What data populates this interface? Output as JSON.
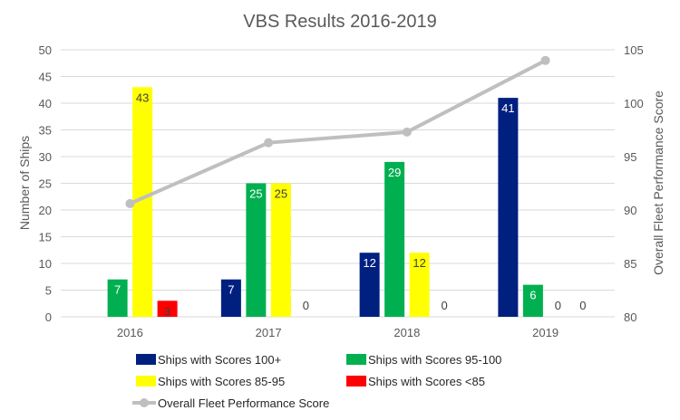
{
  "chart_data": {
    "type": "bar",
    "title": "VBS Results 2016-2019",
    "categories": [
      "2016",
      "2017",
      "2018",
      "2019"
    ],
    "ylabel": "Number of Ships",
    "y2label": "Overall Fleet Performance Score",
    "ylim": [
      0,
      50
    ],
    "y2lim": [
      80,
      105
    ],
    "yticks": [
      0,
      5,
      10,
      15,
      20,
      25,
      30,
      35,
      40,
      45,
      50
    ],
    "y2ticks": [
      80,
      85,
      90,
      95,
      100,
      105
    ],
    "grid": true,
    "legend_position": "bottom",
    "series": [
      {
        "name": "Ships with Scores 100+",
        "type": "bar",
        "color": "#002080",
        "label_color": "#ffffff",
        "values": [
          null,
          7,
          12,
          41
        ],
        "labels": [
          "",
          "7",
          "12",
          "41"
        ]
      },
      {
        "name": "Ships with Scores 95-100",
        "type": "bar",
        "color": "#00b050",
        "label_color": "#ffffff",
        "values": [
          7,
          25,
          29,
          6
        ],
        "labels": [
          "7",
          "25",
          "29",
          "6"
        ]
      },
      {
        "name": "Ships with Scores 85-95",
        "type": "bar",
        "color": "#ffff00",
        "label_color": "#404040",
        "values": [
          43,
          25,
          12,
          0
        ],
        "labels": [
          "43",
          "25",
          "12",
          "0"
        ]
      },
      {
        "name": "Ships with Scores <85",
        "type": "bar",
        "color": "#ff0000",
        "label_color": "#404040",
        "values": [
          3,
          0,
          0,
          0
        ],
        "labels": [
          "3",
          "0",
          "0",
          "0"
        ]
      },
      {
        "name": "Overall Fleet Performance Score",
        "type": "line",
        "axis": "secondary",
        "color": "#bfbfbf",
        "values": [
          90.6,
          96.3,
          97.3,
          104
        ]
      }
    ]
  }
}
